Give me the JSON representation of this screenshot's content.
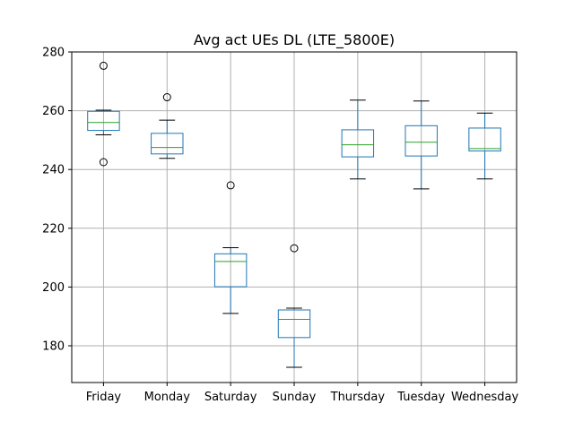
{
  "chart_data": {
    "type": "boxplot",
    "title": "Avg act UEs DL (LTE_5800E)",
    "xlabel": "",
    "ylabel": "",
    "ylim": [
      167.5,
      280
    ],
    "yticks": [
      180,
      200,
      220,
      240,
      260,
      280
    ],
    "grid": true,
    "categories": [
      "Friday",
      "Monday",
      "Saturday",
      "Sunday",
      "Thursday",
      "Tuesday",
      "Wednesday"
    ],
    "boxes": [
      {
        "category": "Friday",
        "whisker_low": 251.8,
        "q1": 253.3,
        "median": 256.0,
        "q3": 259.8,
        "whisker_high": 260.2,
        "outliers": [
          275.3,
          242.5
        ]
      },
      {
        "category": "Monday",
        "whisker_low": 243.8,
        "q1": 245.3,
        "median": 247.5,
        "q3": 252.3,
        "whisker_high": 256.8,
        "outliers": [
          264.6
        ]
      },
      {
        "category": "Saturday",
        "whisker_low": 191.0,
        "q1": 200.1,
        "median": 208.7,
        "q3": 211.3,
        "whisker_high": 213.4,
        "outliers": [
          234.6
        ]
      },
      {
        "category": "Sunday",
        "whisker_low": 172.7,
        "q1": 182.8,
        "median": 189.0,
        "q3": 192.2,
        "whisker_high": 192.8,
        "outliers": [
          213.2
        ]
      },
      {
        "category": "Thursday",
        "whisker_low": 236.8,
        "q1": 244.3,
        "median": 248.4,
        "q3": 253.5,
        "whisker_high": 263.6,
        "outliers": []
      },
      {
        "category": "Tuesday",
        "whisker_low": 233.4,
        "q1": 244.6,
        "median": 249.3,
        "q3": 254.9,
        "whisker_high": 263.3,
        "outliers": []
      },
      {
        "category": "Wednesday",
        "whisker_low": 236.8,
        "q1": 246.3,
        "median": 247.1,
        "q3": 254.1,
        "whisker_high": 259.2,
        "outliers": []
      }
    ],
    "colors": {
      "box": "#1f77b4",
      "median": "#2ca02c",
      "grid": "#b0b0b0",
      "axis": "#000000"
    }
  }
}
